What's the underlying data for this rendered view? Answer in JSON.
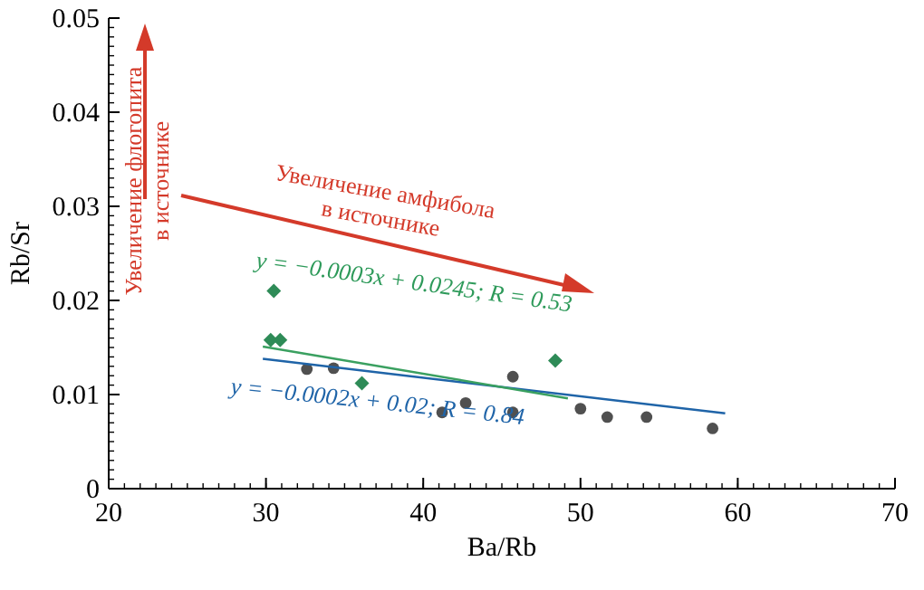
{
  "chart_data": {
    "type": "scatter",
    "xlabel": "Ba/Rb",
    "ylabel": "Rb/Sr",
    "xlim": [
      20,
      70
    ],
    "ylim": [
      0,
      0.05
    ],
    "xticks": [
      20,
      30,
      40,
      50,
      60,
      70
    ],
    "yticks": [
      {
        "value": 0,
        "label": "0"
      },
      {
        "value": 0.01,
        "label": "0.01"
      },
      {
        "value": 0.02,
        "label": "0.02"
      },
      {
        "value": 0.03,
        "label": "0.03"
      },
      {
        "value": 0.04,
        "label": "0.04"
      },
      {
        "value": 0.05,
        "label": "0.05"
      }
    ],
    "grid": false,
    "series": [
      {
        "marker": "circle",
        "color": "#505050",
        "x": [
          32.6,
          34.3,
          41.2,
          42.7,
          45.7,
          45.7,
          50.0,
          51.7,
          54.2,
          58.4
        ],
        "values": [
          0.0127,
          0.0128,
          0.0081,
          0.0091,
          0.0119,
          0.0081,
          0.0085,
          0.0076,
          0.0076,
          0.0064
        ]
      },
      {
        "marker": "diamond",
        "color": "#2e8b57",
        "x": [
          30.5,
          30.3,
          30.9,
          36.1,
          48.4
        ],
        "values": [
          0.021,
          0.0158,
          0.0158,
          0.0112,
          0.0136
        ]
      },
      {
        "type": "line",
        "marker": "none",
        "color": "#1f64a8",
        "x": [
          29.8,
          59.2
        ],
        "values": [
          0.0138,
          0.008
        ]
      },
      {
        "type": "line",
        "marker": "none",
        "color": "#3aa060",
        "x": [
          29.8,
          49.2
        ],
        "values": [
          0.0151,
          0.0096
        ]
      }
    ],
    "annotations": [
      "y = −0.0003x + 0.0245; R = 0.53",
      "y = −0.0002x + 0.02; R = 0.84",
      "Увеличение амфибола\nв источнике",
      "Увеличение флогопита\nв источнике"
    ]
  }
}
